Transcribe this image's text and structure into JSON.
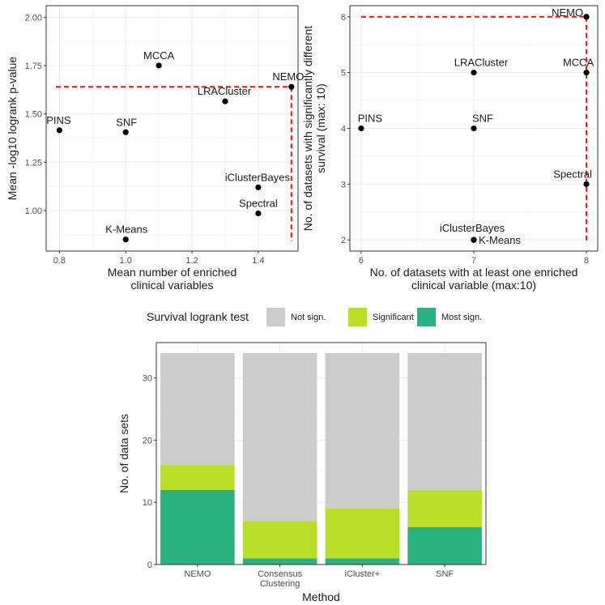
{
  "chart_data": [
    {
      "id": "scatter1",
      "type": "scatter",
      "xlabel": [
        "Mean number of enriched",
        "clinical variables"
      ],
      "ylabel": [
        "Mean -log10 logrank p-value"
      ],
      "xlim": [
        0.76,
        1.52
      ],
      "ylim": [
        0.79,
        2.06
      ],
      "xticks": [
        0.8,
        1.0,
        1.2,
        1.4
      ],
      "xtick_labels": [
        "0.8",
        "1.0",
        "1.2",
        "1.4"
      ],
      "yticks": [
        1.0,
        1.25,
        1.5,
        1.75,
        2.0
      ],
      "ytick_labels": [
        "1.00",
        "1.25",
        "1.50",
        "1.75",
        "2.00"
      ],
      "points": [
        {
          "label": "PINS",
          "x": 0.8,
          "y": 1.415
        },
        {
          "label": "SNF",
          "x": 1.0,
          "y": 1.405
        },
        {
          "label": "MCCA",
          "x": 1.1,
          "y": 1.75
        },
        {
          "label": "LRACluster",
          "x": 1.3,
          "y": 1.565
        },
        {
          "label": "NEMO",
          "x": 1.5,
          "y": 1.64
        },
        {
          "label": "iClusterBayes",
          "x": 1.4,
          "y": 1.12
        },
        {
          "label": "Spectral",
          "x": 1.4,
          "y": 0.985
        },
        {
          "label": "K-Means",
          "x": 1.0,
          "y": 0.85
        }
      ],
      "reference_lines": {
        "x": 1.5,
        "y": 1.64,
        "color": "#ee1111",
        "style": "dashed"
      }
    },
    {
      "id": "scatter2",
      "type": "scatter",
      "xlabel": [
        "No. of datasets with at least one enriched",
        "clinical variable (max:10)"
      ],
      "ylabel": [
        "No. of datasets with significantly different",
        "survival (max: 10)"
      ],
      "xlim": [
        5.9,
        8.1
      ],
      "ylim": [
        1.8,
        6.2
      ],
      "xticks": [
        6,
        7,
        8
      ],
      "xtick_labels": [
        "6",
        "7",
        "8"
      ],
      "yticks": [
        2,
        3,
        4,
        5,
        6
      ],
      "ytick_labels": [
        "2",
        "3",
        "4",
        "5",
        "6"
      ],
      "points": [
        {
          "label": "PINS",
          "x": 6,
          "y": 4
        },
        {
          "label": "SNF",
          "x": 7,
          "y": 4
        },
        {
          "label": "LRACluster",
          "x": 7,
          "y": 5
        },
        {
          "label": "iClusterBayes",
          "x": 7,
          "y": 2
        },
        {
          "label": "K-Means",
          "x": 7,
          "y": 2
        },
        {
          "label": "NEMO",
          "x": 8,
          "y": 6
        },
        {
          "label": "MCCA",
          "x": 8,
          "y": 5
        },
        {
          "label": "Spectral",
          "x": 8,
          "y": 3
        }
      ],
      "reference_lines": {
        "x": 8,
        "y": 6,
        "color": "#ee1111",
        "style": "dashed"
      }
    },
    {
      "id": "bars",
      "type": "bar",
      "stacked": true,
      "legend_title": "Survival logrank test",
      "legend_position": "top",
      "xlabel": "Method",
      "ylabel": "No. of data sets",
      "ylim": [
        0,
        35.7
      ],
      "yticks": [
        0,
        10,
        20,
        30
      ],
      "ytick_labels": [
        "0",
        "10",
        "20",
        "30"
      ],
      "categories": [
        [
          "NEMO"
        ],
        [
          "Consensus",
          "Clustering"
        ],
        [
          "iCluster+"
        ],
        [
          "SNF"
        ]
      ],
      "series": [
        {
          "name": "Most sign.",
          "color": "#2bb07f",
          "values": [
            12,
            1,
            1,
            6
          ]
        },
        {
          "name": "Significant",
          "color": "#b8de29",
          "values": [
            4,
            6,
            8,
            6
          ]
        },
        {
          "name": "Not sign.",
          "color": "#cccccc",
          "values": [
            18,
            27,
            25,
            22
          ]
        }
      ],
      "legend_order": [
        "Not sign.",
        "Significant",
        "Most sign."
      ]
    }
  ]
}
